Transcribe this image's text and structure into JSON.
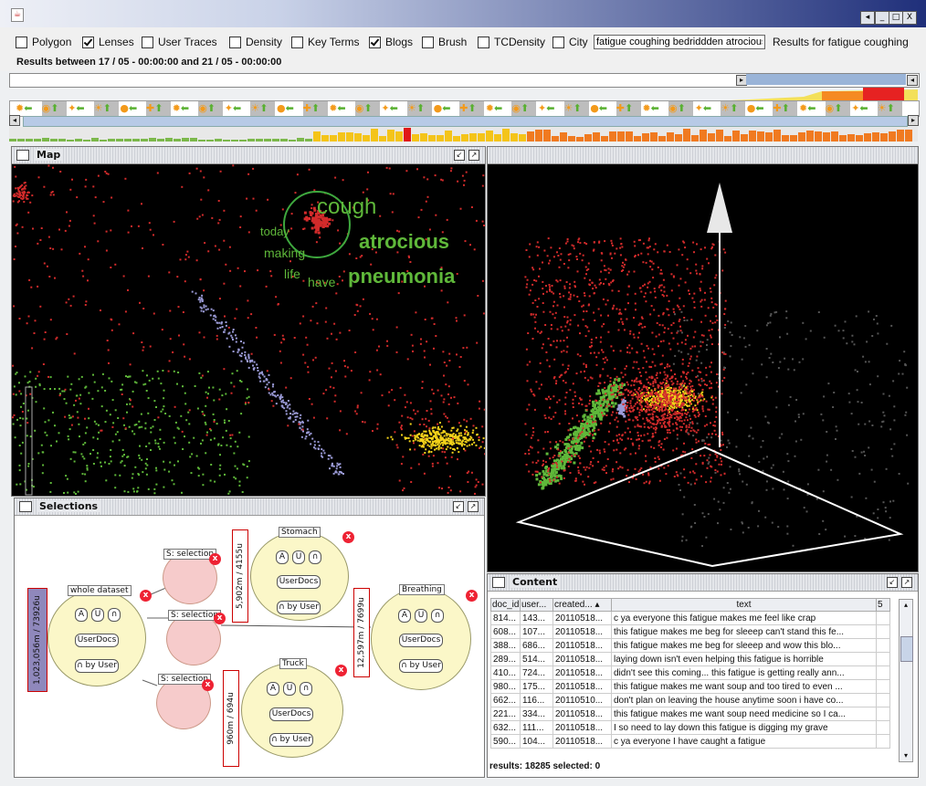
{
  "window": {
    "min_label": "_",
    "max_label": "□",
    "close_label": "X",
    "restore_label": "◂"
  },
  "toolbar": {
    "checkboxes": [
      {
        "label": "Polygon",
        "checked": false
      },
      {
        "label": "Lenses",
        "checked": true
      },
      {
        "label": "User Traces",
        "checked": false
      },
      {
        "label": "Density",
        "checked": false
      },
      {
        "label": "Key Terms",
        "checked": false
      },
      {
        "label": "Blogs",
        "checked": true
      },
      {
        "label": "Brush",
        "checked": false
      },
      {
        "label": "TCDensity",
        "checked": false
      },
      {
        "label": "City",
        "checked": false
      }
    ],
    "search_value": "fatigue coughing bedriddden atrocious",
    "results_for": "Results for fatigue coughing",
    "results_between": "Results between  17 / 05 - 00:00:00  and  21 / 05 - 00:00:00"
  },
  "map_panel": {
    "title": "Map",
    "terms": [
      {
        "text": "cough",
        "size": 24
      },
      {
        "text": "atrocious",
        "size": 22
      },
      {
        "text": "today",
        "size": 13
      },
      {
        "text": "making",
        "size": 14
      },
      {
        "text": "life",
        "size": 14
      },
      {
        "text": "have",
        "size": 14
      },
      {
        "text": "pneumonia",
        "size": 22
      }
    ]
  },
  "selections_panel": {
    "title": "Selections",
    "nodes": {
      "whole": {
        "label": "whole dataset",
        "count": "1,023,056m / 73926u"
      },
      "stomach": {
        "label": "Stomach",
        "count": "5,902m / 4155u"
      },
      "breathing": {
        "label": "Breathing",
        "count": "12,597m / 7699u"
      },
      "truck": {
        "label": "Truck",
        "count": "960m / 694u"
      },
      "selection_label": "S: selection"
    },
    "chips": {
      "a": "A",
      "u": "U",
      "n": "∩",
      "userdocs": "UserDocs",
      "byuser": "∩ by User"
    },
    "close_glyph": "x"
  },
  "content_panel": {
    "title": "Content",
    "columns": [
      "doc_id",
      "user...",
      "created...",
      "text",
      "5"
    ],
    "rows": [
      {
        "doc": "814...",
        "user": "143...",
        "created": "20110518...",
        "text": "c ya everyone this fatigue makes me feel like crap"
      },
      {
        "doc": "608...",
        "user": "107...",
        "created": "20110518...",
        "text": "this fatigue makes me beg for sleeep can't stand this fe..."
      },
      {
        "doc": "388...",
        "user": "686...",
        "created": "20110518...",
        "text": "this fatigue makes me beg for sleeep and wow this blo..."
      },
      {
        "doc": "289...",
        "user": "514...",
        "created": "20110518...",
        "text": "laying down isn't even helping this fatigue is horrible"
      },
      {
        "doc": "410...",
        "user": "724...",
        "created": "20110518...",
        "text": "didn't see this coming... this fatigue is getting really ann..."
      },
      {
        "doc": "980...",
        "user": "175...",
        "created": "20110518...",
        "text": "this fatigue makes me want soup and too tired to even ..."
      },
      {
        "doc": "662...",
        "user": "116...",
        "created": "20110510...",
        "text": "don't plan on leaving the house anytime soon i have co..."
      },
      {
        "doc": "221...",
        "user": "334...",
        "created": "20110518...",
        "text": "this fatigue makes me want soup need medicine so I ca..."
      },
      {
        "doc": "632...",
        "user": "111...",
        "created": "20110518...",
        "text": "I so need to lay down this fatigue is digging my grave"
      },
      {
        "doc": "590...",
        "user": "104...",
        "created": "20110518...",
        "text": "c ya everyone I have caught a fatigue"
      }
    ],
    "status": "results: 18285 selected: 0"
  },
  "colors": {
    "red": "#d22b2b",
    "green": "#5fb83a",
    "yellow": "#f3d21a",
    "lavender": "#9a9ad6",
    "grey": "#555555",
    "term_green": "#5fb83a"
  }
}
